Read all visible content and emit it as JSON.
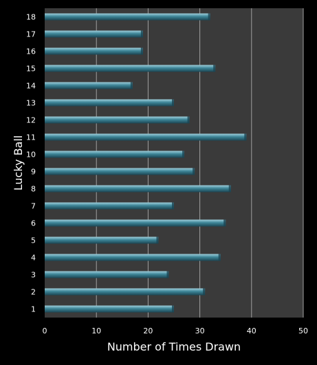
{
  "chart_data": {
    "type": "bar",
    "orientation": "horizontal",
    "title": "",
    "xlabel": "Number of Times Drawn",
    "ylabel": "Lucky Ball",
    "categories": [
      "1",
      "2",
      "3",
      "4",
      "5",
      "6",
      "7",
      "8",
      "9",
      "10",
      "11",
      "12",
      "13",
      "14",
      "15",
      "16",
      "17",
      "18"
    ],
    "values": [
      25,
      31,
      24,
      34,
      22,
      35,
      25,
      36,
      29,
      27,
      39,
      28,
      25,
      17,
      33,
      19,
      19,
      32
    ],
    "xlim": [
      0,
      50
    ],
    "xticks": [
      0,
      10,
      20,
      30,
      40,
      50
    ],
    "grid": "vertical",
    "legend": "none",
    "colors": {
      "background": "#000000",
      "plot_background": "#3a3a3a",
      "bar_fill": "#3d8597",
      "bar_highlight": "#9fd0dc",
      "bar_shadow": "#1b4553",
      "gridline": "#a0a0a0",
      "text": "#ffffff"
    }
  }
}
